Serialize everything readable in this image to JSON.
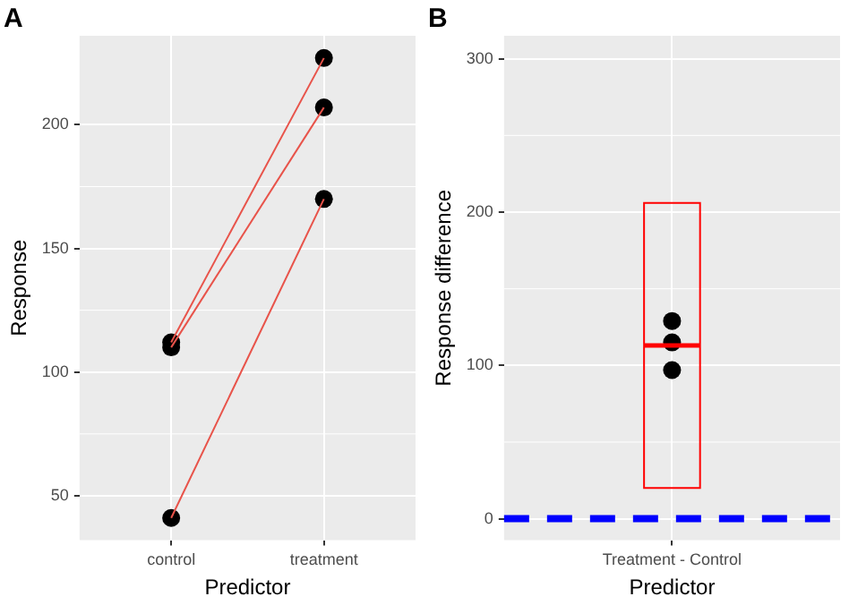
{
  "chart_data": [
    {
      "type": "line",
      "title": "A",
      "xlabel": "Predictor",
      "ylabel": "Response",
      "categories": [
        "control",
        "treatment"
      ],
      "series": [
        {
          "type": "line",
          "color": "#e8534a",
          "marker": "none",
          "values": [
            112,
            227
          ]
        },
        {
          "type": "line",
          "color": "#e8534a",
          "marker": "none",
          "values": [
            110,
            207
          ]
        },
        {
          "type": "line",
          "color": "#e8534a",
          "marker": "none",
          "values": [
            41,
            170
          ]
        },
        {
          "type": "scatter",
          "color": "#000000",
          "marker": "circle",
          "x": [
            "control",
            "control",
            "control",
            "treatment",
            "treatment",
            "treatment"
          ],
          "values": [
            112,
            110,
            41,
            227,
            207,
            170
          ]
        }
      ],
      "ylim": [
        32,
        236
      ],
      "yticks": [
        50,
        100,
        150,
        200
      ],
      "grid": true,
      "legend": false
    },
    {
      "type": "box",
      "title": "B",
      "xlabel": "Predictor",
      "ylabel": "Response difference",
      "categories": [
        "Treatment - Control"
      ],
      "color": "#ff0000",
      "boxes": [
        {
          "low": 20,
          "q1": 20,
          "median": 113,
          "q3": 206,
          "high": 206
        }
      ],
      "series": [
        {
          "type": "scatter",
          "color": "#000000",
          "marker": "circle",
          "x": [
            "Treatment - Control",
            "Treatment - Control",
            "Treatment - Control"
          ],
          "values": [
            129,
            115,
            97
          ]
        }
      ],
      "ref_lines": [
        {
          "axis": "y",
          "value": 0,
          "color": "#0000ff",
          "line_style": "dashed"
        }
      ],
      "ylim": [
        -14,
        315
      ],
      "yticks": [
        0,
        100,
        200,
        300
      ],
      "grid": true,
      "legend": false
    }
  ]
}
